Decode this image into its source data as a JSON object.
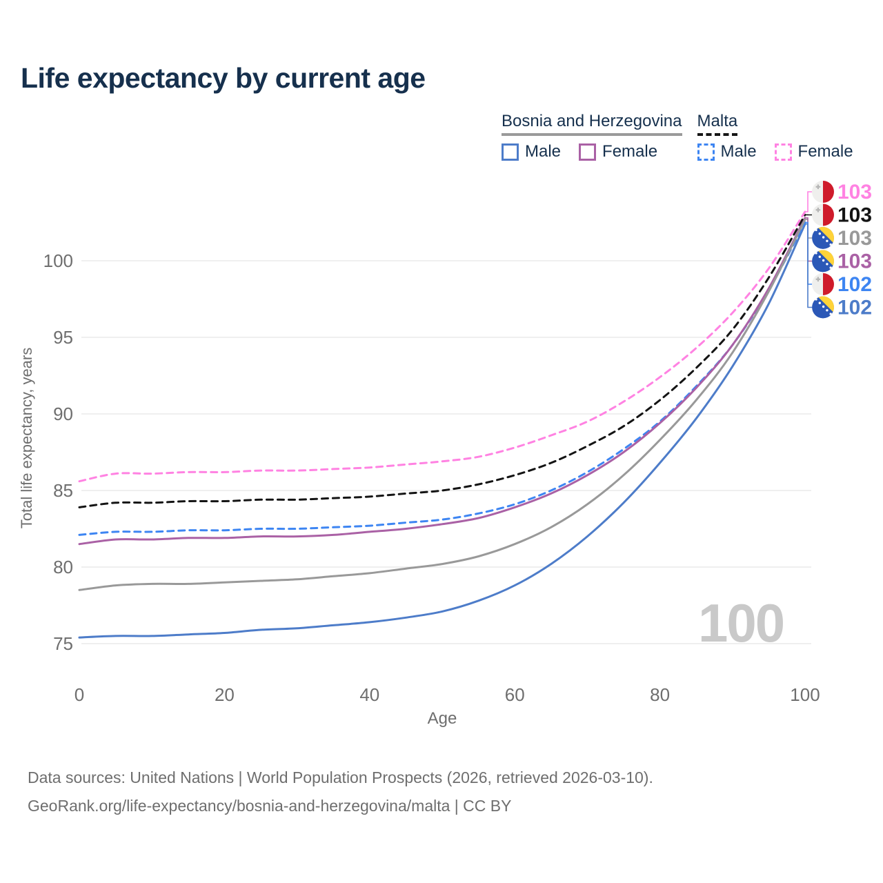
{
  "title": "Life expectancy by current age",
  "watermark": "100",
  "legend": {
    "groups": [
      {
        "name": "Bosnia and Herzegovina",
        "line_style": "solid",
        "underline_color": "#9a9a9a",
        "items": [
          {
            "label": "Male",
            "color": "#4d7cc9"
          },
          {
            "label": "Female",
            "color": "#aa61a5"
          }
        ]
      },
      {
        "name": "Malta",
        "line_style": "dashed",
        "underline_color": "#161616",
        "items": [
          {
            "label": "Male",
            "color": "#3d85f2"
          },
          {
            "label": "Female",
            "color": "#ff82e2"
          }
        ]
      }
    ]
  },
  "footer": {
    "line1": "Data sources: United Nations | World Population Prospects (2026, retrieved 2026-03-10).",
    "line2": "GeoRank.org/life-expectancy/bosnia-and-herzegovina/malta | CC BY"
  },
  "chart_data": {
    "type": "line",
    "title": "Life expectancy by current age",
    "xlabel": "Age",
    "ylabel": "Total life expectancy, years",
    "xlim": [
      0,
      100
    ],
    "ylim": [
      73,
      105
    ],
    "x_ticks": [
      0,
      20,
      40,
      60,
      80,
      100
    ],
    "y_ticks": [
      75,
      80,
      85,
      90,
      95,
      100
    ],
    "grid": "horizontal",
    "legend_position": "top-right",
    "age_indicator": "100",
    "x": [
      0,
      5,
      10,
      15,
      20,
      25,
      30,
      35,
      40,
      45,
      50,
      55,
      60,
      65,
      70,
      75,
      80,
      85,
      90,
      95,
      100
    ],
    "series": [
      {
        "id": "malta-female",
        "name": "Malta Female",
        "country": "Malta",
        "sex": "Female",
        "color": "#ff82e2",
        "dash": true,
        "flag": "malta",
        "end_label": "103",
        "values": [
          85.6,
          86.1,
          86.1,
          86.2,
          86.2,
          86.3,
          86.3,
          86.4,
          86.5,
          86.7,
          86.9,
          87.2,
          87.8,
          88.6,
          89.5,
          90.8,
          92.4,
          94.3,
          96.6,
          99.5,
          103.2
        ]
      },
      {
        "id": "malta-all",
        "name": "Malta",
        "country": "Malta",
        "sex": "All",
        "color": "#141414",
        "dash": true,
        "flag": "malta",
        "end_label": "103",
        "values": [
          83.9,
          84.2,
          84.2,
          84.3,
          84.3,
          84.4,
          84.4,
          84.5,
          84.6,
          84.8,
          85.0,
          85.4,
          86.0,
          86.8,
          87.9,
          89.2,
          90.9,
          93.0,
          95.5,
          98.9,
          103.0
        ]
      },
      {
        "id": "bosnia-all",
        "name": "Bosnia and Herzegovina",
        "country": "Bosnia and Herzegovina",
        "sex": "All",
        "color": "#999999",
        "dash": false,
        "flag": "bosnia",
        "end_label": "103",
        "values": [
          78.5,
          78.8,
          78.9,
          78.9,
          79.0,
          79.1,
          79.2,
          79.4,
          79.6,
          79.9,
          80.2,
          80.7,
          81.5,
          82.6,
          84.1,
          86.0,
          88.3,
          90.9,
          94.0,
          98.0,
          102.7
        ]
      },
      {
        "id": "bosnia-female",
        "name": "Bosnia and Herzegovina Female",
        "country": "Bosnia and Herzegovina",
        "sex": "Female",
        "color": "#aa61a5",
        "dash": false,
        "flag": "bosnia",
        "end_label": "103",
        "values": [
          81.5,
          81.8,
          81.8,
          81.9,
          81.9,
          82.0,
          82.0,
          82.1,
          82.3,
          82.5,
          82.8,
          83.2,
          83.9,
          84.8,
          86.0,
          87.5,
          89.4,
          91.7,
          94.5,
          98.2,
          102.8
        ]
      },
      {
        "id": "malta-male",
        "name": "Malta Male",
        "country": "Malta",
        "sex": "Male",
        "color": "#3d85f2",
        "dash": true,
        "flag": "malta",
        "end_label": "102",
        "values": [
          82.1,
          82.3,
          82.3,
          82.4,
          82.4,
          82.5,
          82.5,
          82.6,
          82.7,
          82.9,
          83.1,
          83.5,
          84.1,
          85.0,
          86.2,
          87.7,
          89.5,
          91.8,
          94.5,
          98.1,
          102.5
        ]
      },
      {
        "id": "bosnia-male",
        "name": "Bosnia and Herzegovina Male",
        "country": "Bosnia and Herzegovina",
        "sex": "Male",
        "color": "#4d7cc9",
        "dash": false,
        "flag": "bosnia",
        "end_label": "102",
        "values": [
          75.4,
          75.5,
          75.5,
          75.6,
          75.7,
          75.9,
          76.0,
          76.2,
          76.4,
          76.7,
          77.1,
          77.8,
          78.8,
          80.2,
          82.0,
          84.2,
          86.8,
          89.7,
          93.1,
          97.2,
          102.4
        ]
      }
    ]
  }
}
